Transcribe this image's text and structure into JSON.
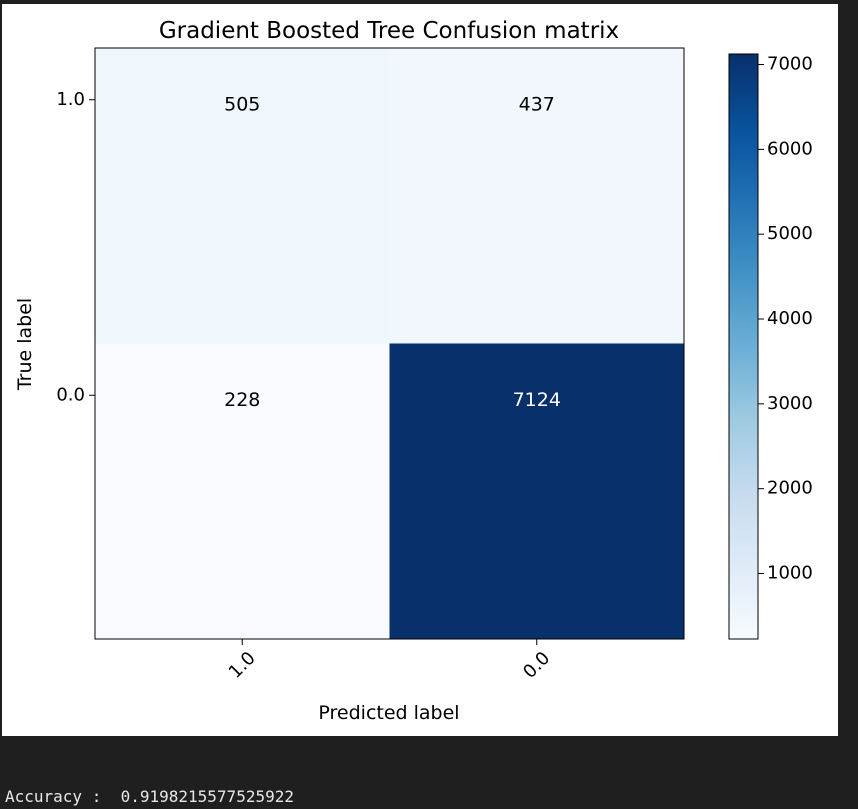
{
  "chart_data": {
    "type": "heatmap",
    "title": "Gradient Boosted Tree Confusion matrix",
    "xlabel": "Predicted label",
    "ylabel": "True label",
    "x_categories": [
      "1.0",
      "0.0"
    ],
    "y_categories": [
      "1.0",
      "0.0"
    ],
    "matrix": [
      [
        505,
        437
      ],
      [
        228,
        7124
      ]
    ],
    "colormap": "Blues",
    "color_range": [
      228,
      7124
    ],
    "colorbar_ticks": [
      1000,
      2000,
      3000,
      4000,
      5000,
      6000,
      7000
    ],
    "grid": false
  },
  "output": {
    "label": "Accuracy :",
    "value": "0.9198215577525922"
  }
}
